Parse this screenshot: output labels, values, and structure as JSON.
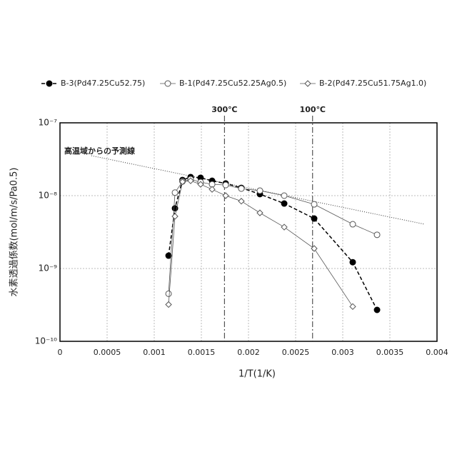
{
  "chart_data": {
    "type": "scatter",
    "xlabel": "1/T(1/K)",
    "ylabel": "水素透過係数(mol/m/s/Pa0.5)",
    "log_y": true,
    "grid": true,
    "xlim": [
      0,
      0.004
    ],
    "xticks": [
      0,
      0.0005,
      0.001,
      0.0015,
      0.002,
      0.0025,
      0.003,
      0.0035,
      0.004
    ],
    "ylim": [
      1e-10,
      1e-07
    ],
    "yticks": [
      {
        "value": 1e-10,
        "label": "10⁻¹⁰"
      },
      {
        "value": 1e-09,
        "label": "10⁻⁹"
      },
      {
        "value": 1e-08,
        "label": "10⁻⁸"
      },
      {
        "value": 1e-07,
        "label": "10⁻⁷"
      }
    ],
    "series": [
      {
        "name": "B-3(Pd47.25Cu52.75)",
        "color": "#000000",
        "marker": "filled-circle",
        "line_style": "dashed",
        "x": [
          0.001152,
          0.00122,
          0.0013,
          0.001386,
          0.001492,
          0.001614,
          0.001758,
          0.001924,
          0.002121,
          0.002379,
          0.002697,
          0.003106,
          0.003364
        ],
        "values": [
          1.5e-09,
          6.7e-09,
          1.64e-08,
          1.8e-08,
          1.76e-08,
          1.6e-08,
          1.47e-08,
          1.28e-08,
          1.05e-08,
          7.8e-09,
          4.85e-09,
          1.22e-09,
          2.7e-10
        ]
      },
      {
        "name": "B-1(Pd47.25Cu52.25Ag0.5)",
        "color": "#555555",
        "marker": "open-circle",
        "line_style": "solid",
        "x": [
          0.001152,
          0.00122,
          0.0013,
          0.001386,
          0.001492,
          0.001614,
          0.001758,
          0.001924,
          0.002121,
          0.002379,
          0.002697,
          0.003106,
          0.003364
        ],
        "values": [
          4.5e-10,
          1.1e-08,
          1.57e-08,
          1.68e-08,
          1.53e-08,
          1.43e-08,
          1.4e-08,
          1.25e-08,
          1.17e-08,
          1e-08,
          7.6e-09,
          4.05e-09,
          2.9e-09
        ]
      },
      {
        "name": "B-2(Pd47.25Cu51.75Ag1.0)",
        "color": "#555555",
        "marker": "open-diamond",
        "line_style": "solid",
        "x": [
          0.001152,
          0.00122,
          0.0013,
          0.001386,
          0.001492,
          0.001614,
          0.001758,
          0.001924,
          0.002121,
          0.002379,
          0.002697,
          0.003106
        ],
        "values": [
          3.2e-10,
          5.2e-09,
          1.55e-08,
          1.6e-08,
          1.43e-08,
          1.22e-08,
          1e-08,
          8.4e-09,
          5.8e-09,
          3.7e-09,
          1.88e-09,
          3e-10
        ]
      }
    ],
    "reference_line": {
      "label": "高温域からの予測線",
      "x": [
        0.000333,
        0.00387
      ],
      "values": [
        3.54e-08,
        4.05e-09
      ]
    },
    "vlines": [
      {
        "label": "300℃",
        "x": 0.001745
      },
      {
        "label": "100℃",
        "x": 0.00268
      }
    ]
  }
}
